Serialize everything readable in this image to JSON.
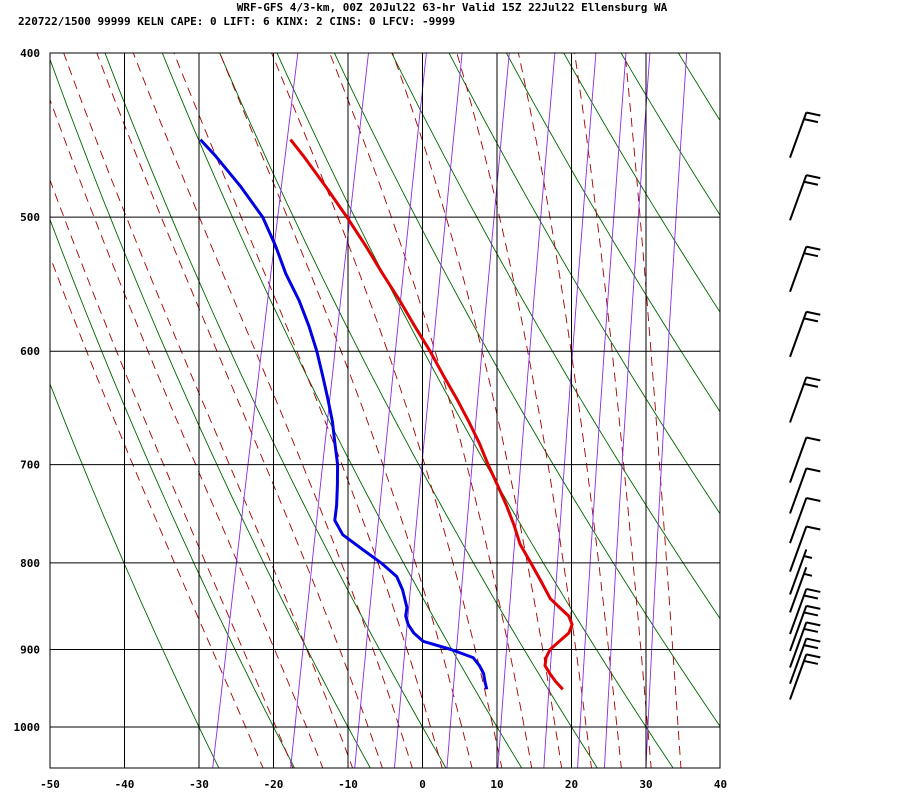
{
  "header": {
    "line1": "WRF-GFS 4/3-km, 00Z 20Jul22 63-hr Valid 15Z 22Jul22 Ellensburg WA",
    "line2": "220722/1500 99999  KELN    CAPE:     0 LIFT:     6 KINX:     2 CINS:     0 LFCV: -9999"
  },
  "colors": {
    "temperature": "#e00000",
    "dewpoint": "#0000e0",
    "dry_adiabat": "#006400",
    "moist_adiabat": "#a00000",
    "mixing_ratio": "#8a2be2",
    "isotherm_grid": "#000000",
    "wind_barb": "#000000"
  },
  "chart_data": {
    "type": "line",
    "title": "",
    "xlabel": "",
    "ylabel": "",
    "xlim": [
      -50,
      40
    ],
    "ylim": [
      1050,
      400
    ],
    "y_scale": "log",
    "x_ticks": [
      -50,
      -40,
      -30,
      -20,
      -10,
      0,
      10,
      20,
      30,
      40
    ],
    "y_ticks": [
      400,
      500,
      600,
      700,
      800,
      900,
      1000
    ],
    "grid": true,
    "series": [
      {
        "key": "temperature",
        "points": [
          [
            17.7,
            950
          ],
          [
            16.5,
            940
          ],
          [
            15.5,
            930
          ],
          [
            14.6,
            920
          ],
          [
            14.5,
            910
          ],
          [
            14.8,
            900
          ],
          [
            15.8,
            890
          ],
          [
            16.8,
            880
          ],
          [
            17.0,
            870
          ],
          [
            16.3,
            860
          ],
          [
            14.8,
            850
          ],
          [
            13.3,
            840
          ],
          [
            11.5,
            820
          ],
          [
            9.6,
            800
          ],
          [
            7.6,
            780
          ],
          [
            6.2,
            760
          ],
          [
            4.6,
            740
          ],
          [
            2.8,
            720
          ],
          [
            0.9,
            700
          ],
          [
            -0.9,
            680
          ],
          [
            -3.0,
            660
          ],
          [
            -5.3,
            640
          ],
          [
            -7.8,
            620
          ],
          [
            -10.3,
            600
          ],
          [
            -13.1,
            580
          ],
          [
            -15.9,
            560
          ],
          [
            -19.0,
            540
          ],
          [
            -22.1,
            520
          ],
          [
            -25.5,
            500
          ],
          [
            -29.2,
            480
          ],
          [
            -33.2,
            460
          ],
          [
            -35.4,
            450
          ]
        ]
      },
      {
        "key": "dewpoint",
        "points": [
          [
            7.5,
            950
          ],
          [
            7.0,
            940
          ],
          [
            6.6,
            930
          ],
          [
            5.8,
            920
          ],
          [
            4.7,
            910
          ],
          [
            1.5,
            900
          ],
          [
            -2.5,
            890
          ],
          [
            -4.0,
            880
          ],
          [
            -5.0,
            870
          ],
          [
            -5.6,
            860
          ],
          [
            -5.7,
            850
          ],
          [
            -6.8,
            830
          ],
          [
            -8.0,
            815
          ],
          [
            -10.5,
            800
          ],
          [
            -13.5,
            785
          ],
          [
            -16.5,
            770
          ],
          [
            -18.0,
            755
          ],
          [
            -18.2,
            740
          ],
          [
            -18.7,
            720
          ],
          [
            -19.3,
            700
          ],
          [
            -20.3,
            680
          ],
          [
            -21.3,
            660
          ],
          [
            -22.6,
            640
          ],
          [
            -24.0,
            620
          ],
          [
            -25.5,
            600
          ],
          [
            -27.3,
            580
          ],
          [
            -29.4,
            560
          ],
          [
            -32.0,
            540
          ],
          [
            -34.2,
            520
          ],
          [
            -36.8,
            500
          ],
          [
            -40.6,
            480
          ],
          [
            -45.0,
            460
          ],
          [
            -47.5,
            450
          ]
        ]
      }
    ],
    "wind_barbs": [
      {
        "p": 450,
        "speed": 20
      },
      {
        "p": 490,
        "speed": 20
      },
      {
        "p": 540,
        "speed": 20
      },
      {
        "p": 590,
        "speed": 20
      },
      {
        "p": 645,
        "speed": 20
      },
      {
        "p": 700,
        "speed": 10
      },
      {
        "p": 730,
        "speed": 10
      },
      {
        "p": 760,
        "speed": 10
      },
      {
        "p": 790,
        "speed": 10
      },
      {
        "p": 815,
        "speed": 5
      },
      {
        "p": 835,
        "speed": 5
      },
      {
        "p": 860,
        "speed": 20
      },
      {
        "p": 880,
        "speed": 20
      },
      {
        "p": 900,
        "speed": 20
      },
      {
        "p": 920,
        "speed": 20
      },
      {
        "p": 940,
        "speed": 20
      }
    ]
  }
}
